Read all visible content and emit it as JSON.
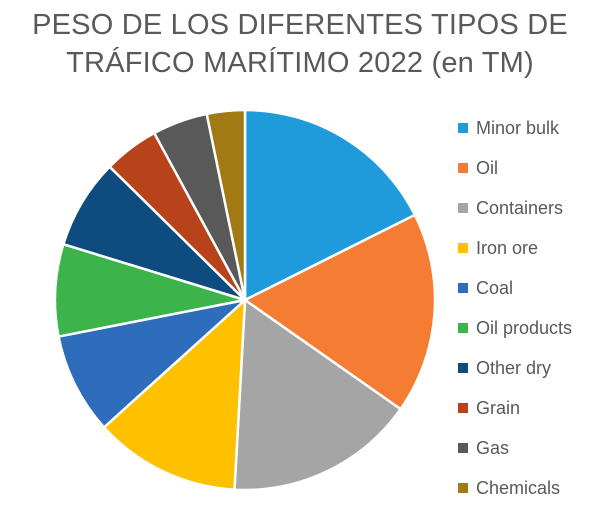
{
  "chart_data": {
    "type": "pie",
    "title_lines": [
      "PESO DE LOS DIFERENTES TIPOS DE",
      "TRÁFICO MARÍTIMO 2022 (en TM)"
    ],
    "series": [
      {
        "name": "Minor bulk",
        "value": 18.0,
        "color": "#1F9ADB"
      },
      {
        "name": "Oil",
        "value": 17.5,
        "color": "#F47D33"
      },
      {
        "name": "Containers",
        "value": 16.5,
        "color": "#A5A5A5"
      },
      {
        "name": "Iron ore",
        "value": 12.7,
        "color": "#FFC000"
      },
      {
        "name": "Coal",
        "value": 8.8,
        "color": "#2E6DBB"
      },
      {
        "name": "Oil products",
        "value": 8.0,
        "color": "#3CB44B"
      },
      {
        "name": "Other dry",
        "value": 7.8,
        "color": "#0E4C80"
      },
      {
        "name": "Grain",
        "value": 4.8,
        "color": "#B8431B"
      },
      {
        "name": "Gas",
        "value": 4.8,
        "color": "#595959"
      },
      {
        "name": "Chemicals",
        "value": 3.3,
        "color": "#A17A14"
      }
    ],
    "legend_position": "right"
  }
}
